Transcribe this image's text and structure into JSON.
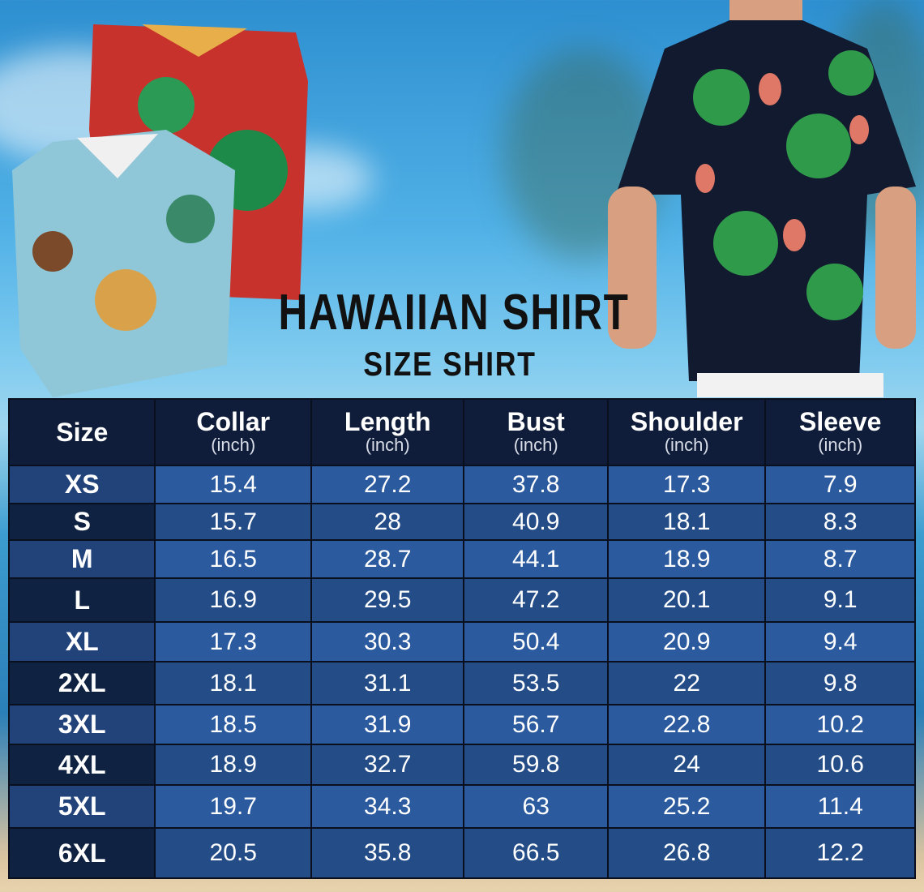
{
  "title": "HAWAIIAN SHIRT",
  "subtitle": "SIZE SHIRT",
  "colors": {
    "header_bg": "#0f1d3a",
    "cell_light": "#2b5a9e",
    "cell_dark": "#244d88",
    "size_col_dark": "#0f2242"
  },
  "table": {
    "columns": [
      {
        "label": "Size",
        "unit": ""
      },
      {
        "label": "Collar",
        "unit": "(inch)"
      },
      {
        "label": "Length",
        "unit": "(inch)"
      },
      {
        "label": "Bust",
        "unit": "(inch)"
      },
      {
        "label": "Shoulder",
        "unit": "(inch)"
      },
      {
        "label": "Sleeve",
        "unit": "(inch)"
      }
    ],
    "rows": [
      [
        "XS",
        "15.4",
        "27.2",
        "37.8",
        "17.3",
        "7.9"
      ],
      [
        "S",
        "15.7",
        "28",
        "40.9",
        "18.1",
        "8.3"
      ],
      [
        "M",
        "16.5",
        "28.7",
        "44.1",
        "18.9",
        "8.7"
      ],
      [
        "L",
        "16.9",
        "29.5",
        "47.2",
        "20.1",
        "9.1"
      ],
      [
        "XL",
        "17.3",
        "30.3",
        "50.4",
        "20.9",
        "9.4"
      ],
      [
        "2XL",
        "18.1",
        "31.1",
        "53.5",
        "22",
        "9.8"
      ],
      [
        "3XL",
        "18.5",
        "31.9",
        "56.7",
        "22.8",
        "10.2"
      ],
      [
        "4XL",
        "18.9",
        "32.7",
        "59.8",
        "24",
        "10.6"
      ],
      [
        "5XL",
        "19.7",
        "34.3",
        "63",
        "25.2",
        "11.4"
      ],
      [
        "6XL",
        "20.5",
        "35.8",
        "66.5",
        "26.8",
        "12.2"
      ]
    ]
  }
}
